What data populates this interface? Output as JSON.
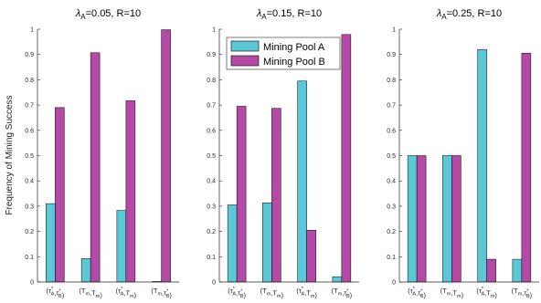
{
  "colors": {
    "pool_a": "#5bc8d8",
    "pool_b": "#b44aa6"
  },
  "chart_data": [
    {
      "type": "bar",
      "title": "λ_A=0.05, R=10",
      "title_lambda": "λ",
      "title_sub": "A",
      "title_rest": "=0.05, R=10",
      "ylabel": "Frequency of Mining Success",
      "ylim": [
        0,
        1
      ],
      "yticks": [
        "0",
        "0.1",
        "0.2",
        "0.3",
        "0.4",
        "0.5",
        "0.6",
        "0.7",
        "0.8",
        "0.9",
        "1"
      ],
      "categories": [
        "(τ*A,τ*B)",
        "(Tm,Tm)",
        "(τ*A,Tm)",
        "(Tm,τ*B)"
      ],
      "series": [
        {
          "name": "Mining Pool A",
          "values": [
            0.31,
            0.093,
            0.283,
            0.002
          ]
        },
        {
          "name": "Mining Pool B",
          "values": [
            0.69,
            0.907,
            0.717,
            0.998
          ]
        }
      ],
      "legend": "none"
    },
    {
      "type": "bar",
      "title": "λ_A=0.15, R=10",
      "title_lambda": "λ",
      "title_sub": "A",
      "title_rest": "=0.15, R=10",
      "ylim": [
        0,
        1
      ],
      "yticks": [
        "0",
        "0.1",
        "0.2",
        "0.3",
        "0.4",
        "0.5",
        "0.6",
        "0.7",
        "0.8",
        "0.9",
        "1"
      ],
      "categories": [
        "(τ*A,τ*B)",
        "(Tm,Tm)",
        "(τ*A,Tm)",
        "(Tm,τ*B)"
      ],
      "series": [
        {
          "name": "Mining Pool A",
          "values": [
            0.305,
            0.313,
            0.795,
            0.021
          ]
        },
        {
          "name": "Mining Pool B",
          "values": [
            0.695,
            0.687,
            0.205,
            0.979
          ]
        }
      ],
      "legend": "top-left"
    },
    {
      "type": "bar",
      "title": "λ_A=0.25, R=10",
      "title_lambda": "λ",
      "title_sub": "A",
      "title_rest": "=0.25, R=10",
      "ylim": [
        0,
        1
      ],
      "yticks": [
        "0",
        "0.1",
        "0.2",
        "0.3",
        "0.4",
        "0.5",
        "0.6",
        "0.7",
        "0.8",
        "0.9",
        "1"
      ],
      "categories": [
        "(τ*A,τ*B)",
        "(Tm,Tm)",
        "(τ*A,Tm)",
        "(Tm,τ*B)"
      ],
      "series": [
        {
          "name": "Mining Pool A",
          "values": [
            0.5,
            0.5,
            0.92,
            0.09
          ]
        },
        {
          "name": "Mining Pool B",
          "values": [
            0.5,
            0.5,
            0.09,
            0.905
          ]
        }
      ],
      "legend": "none"
    }
  ],
  "legend": {
    "items": [
      {
        "label": "Mining Pool A"
      },
      {
        "label": "Mining Pool B"
      }
    ]
  }
}
